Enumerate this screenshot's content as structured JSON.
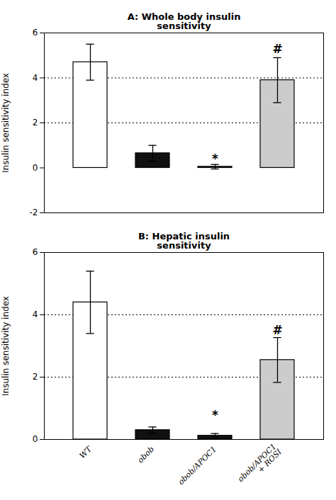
{
  "chart_data": [
    {
      "type": "bar",
      "title": "A: Whole body insulin\nsensitivity",
      "categories": [
        "WT",
        "obob",
        "obob/APOC1",
        "obob/APOC1\n+ ROSI"
      ],
      "values": [
        4.7,
        0.65,
        0.05,
        3.9
      ],
      "errors": [
        0.8,
        0.35,
        0.1,
        1.0
      ],
      "colors": [
        "white",
        "#111111",
        "#111111",
        "#cccccc"
      ],
      "ylabel": "Insulin sensitivity index",
      "ylim": [
        -2,
        6
      ],
      "yticks": [
        -2,
        0,
        2,
        4,
        6
      ],
      "hlines": [
        2.0,
        4.0
      ],
      "annotations": [
        {
          "text": "*",
          "x": "obob/APOC1",
          "y": 0.22
        },
        {
          "text": "#",
          "x": "obob/APOC1\n+ ROSI",
          "y": 5.1
        }
      ],
      "tick_labels": "y"
    },
    {
      "type": "bar",
      "title": "B: Hepatic insulin\nsensitivity",
      "categories": [
        "WT",
        "obob",
        "obob/APOC1",
        "obob/APOC1\n+ ROSI"
      ],
      "values": [
        4.4,
        0.3,
        0.12,
        2.55
      ],
      "errors": [
        1.0,
        0.1,
        0.07,
        0.72
      ],
      "colors": [
        "white",
        "#111111",
        "#111111",
        "#cccccc"
      ],
      "ylabel": "Insulin sensitivity index",
      "ylim": [
        0,
        6
      ],
      "yticks": [
        0,
        2,
        4,
        6
      ],
      "hlines": [
        2.0,
        4.0
      ],
      "annotations": [
        {
          "text": "*",
          "x": "obob/APOC1",
          "y": 0.65
        },
        {
          "text": "#",
          "x": "obob/APOC1\n+ ROSI",
          "y": 3.38
        }
      ]
    }
  ]
}
